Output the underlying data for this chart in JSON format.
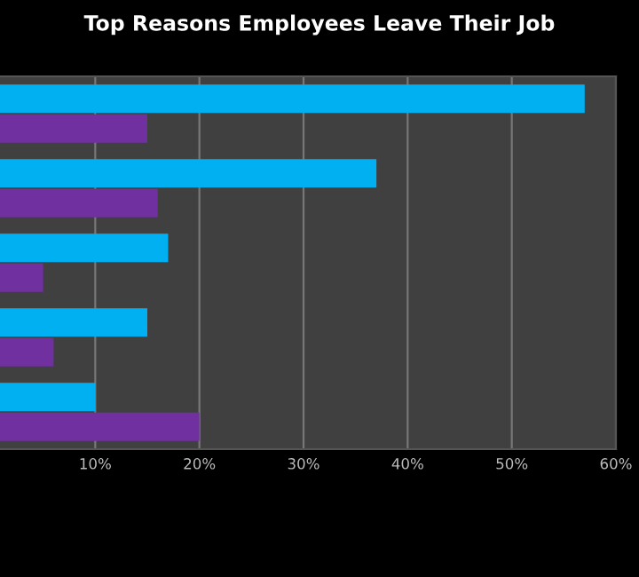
{
  "chart_data": {
    "type": "bar",
    "orientation": "horizontal",
    "title": "Top Reasons Employees Leave Their Job",
    "categories": [
      null,
      null,
      null,
      null,
      null
    ],
    "series": [
      {
        "color": "#00b0f0",
        "values": [
          57,
          37,
          17,
          15,
          10
        ]
      },
      {
        "color": "#7030a0",
        "values": [
          15,
          16,
          5,
          6,
          20
        ]
      }
    ],
    "xlim": [
      0,
      60
    ],
    "xticks": [
      {
        "value": 10,
        "label": "10%"
      },
      {
        "value": 20,
        "label": "20%"
      },
      {
        "value": 30,
        "label": "30%"
      },
      {
        "value": 40,
        "label": "40%"
      },
      {
        "value": 50,
        "label": "50%"
      },
      {
        "value": 60,
        "label": "60%"
      }
    ],
    "grid": "x"
  }
}
